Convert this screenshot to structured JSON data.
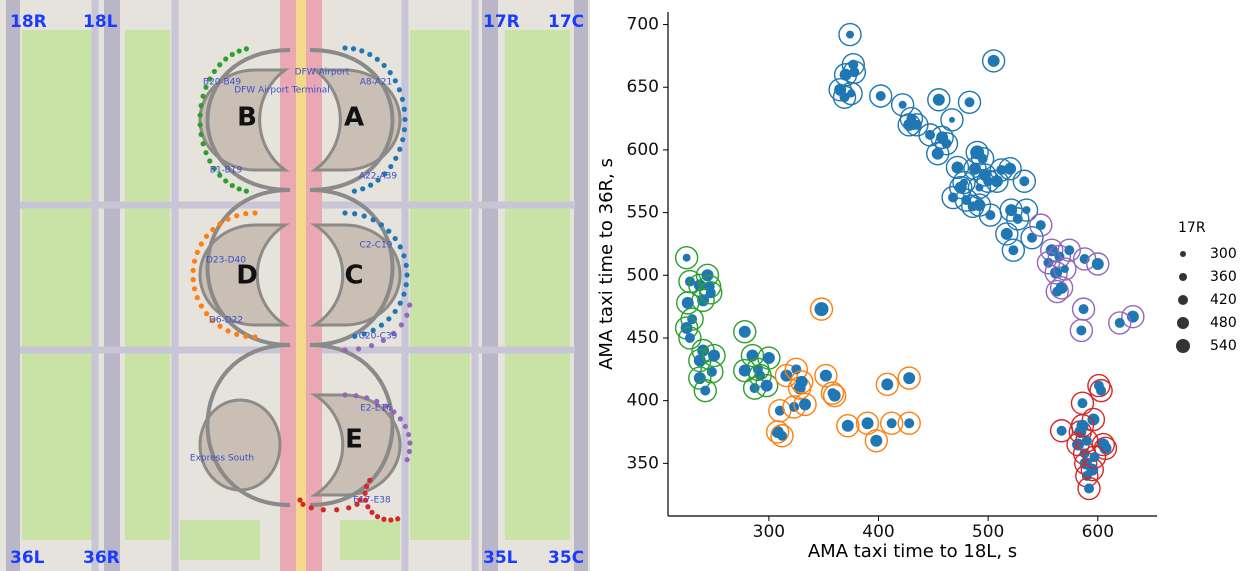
{
  "map": {
    "runway_labels": [
      "18R",
      "18L",
      "17R",
      "17C",
      "36L",
      "36R",
      "35L",
      "35C"
    ],
    "terminals": [
      "B",
      "A",
      "D",
      "C",
      "E"
    ],
    "gate_labels": [
      "B20-B49",
      "A8-A21",
      "B1-B19",
      "A22-A39",
      "C2-C19",
      "D23-D40",
      "D6-D22",
      "C20-C39",
      "E2-E16",
      "E17-E38"
    ],
    "place_labels": [
      "DFW Airport",
      "DFW Airport Terminal",
      "Express South"
    ]
  },
  "chart_data": {
    "type": "scatter",
    "x_label": "AMA taxi time to 18L, s",
    "y_label": "AMA taxi time to 36R, s",
    "xlim": [
      208,
      654
    ],
    "ylim": [
      308,
      710
    ],
    "xticks": [
      300,
      400,
      500,
      600
    ],
    "yticks": [
      350,
      400,
      450,
      500,
      550,
      600,
      650,
      700
    ],
    "grid": false,
    "point_color": "#1f77b4",
    "size_legend": {
      "title": "17R",
      "values": [
        300,
        360,
        420,
        480,
        540
      ],
      "color": "#333333"
    },
    "series": [
      {
        "color": "#1f77b4",
        "x": [
          374,
          377,
          370,
          378,
          365,
          369,
          375,
          402,
          422,
          430,
          428,
          435,
          455,
          447,
          458,
          462,
          454,
          467,
          483,
          505,
          472,
          490,
          495,
          488,
          497,
          500,
          492,
          512,
          520,
          533,
          475,
          468,
          480,
          492,
          502,
          521,
          527,
          535,
          517,
          523,
          540,
          508,
          486,
          478
        ],
        "values": [
          692,
          668,
          660,
          662,
          648,
          642,
          645,
          643,
          636,
          625,
          620,
          620,
          640,
          612,
          610,
          605,
          597,
          624,
          638,
          671,
          586,
          598,
          593,
          585,
          580,
          575,
          570,
          584,
          585,
          575,
          570,
          562,
          560,
          556,
          548,
          552,
          545,
          552,
          533,
          520,
          530,
          575,
          555,
          574
        ],
        "sizes": [
          360,
          420,
          480,
          420,
          480,
          420,
          360,
          420,
          360,
          420,
          480,
          420,
          480,
          420,
          480,
          420,
          480,
          300,
          420,
          480,
          480,
          540,
          420,
          480,
          480,
          420,
          360,
          420,
          480,
          420,
          480,
          420,
          420,
          480,
          420,
          480,
          420,
          360,
          480,
          420,
          420,
          480,
          420,
          360
        ]
      },
      {
        "color": "#9467bd",
        "x": [
          548,
          558,
          555,
          562,
          565,
          570,
          574,
          567,
          563,
          588,
          600,
          587,
          585,
          632,
          620
        ],
        "values": [
          540,
          520,
          510,
          502,
          515,
          505,
          520,
          490,
          487,
          513,
          509,
          473,
          456,
          467,
          462
        ],
        "sizes": [
          420,
          480,
          420,
          480,
          420,
          360,
          420,
          480,
          420,
          420,
          480,
          420,
          420,
          480,
          420
        ]
      },
      {
        "color": "#2ca02c",
        "x": [
          225,
          228,
          237,
          244,
          246,
          240,
          247,
          226,
          230,
          225,
          228,
          240,
          248,
          237,
          237,
          242,
          250,
          278,
          285,
          290,
          300,
          292,
          278,
          287,
          298
        ],
        "values": [
          514,
          495,
          492,
          500,
          491,
          480,
          486,
          478,
          465,
          458,
          450,
          440,
          423,
          432,
          418,
          408,
          436,
          455,
          436,
          425,
          434,
          420,
          424,
          410,
          412
        ],
        "sizes": [
          360,
          420,
          480,
          480,
          420,
          480,
          420,
          480,
          420,
          480,
          420,
          480,
          420,
          480,
          480,
          420,
          480,
          480,
          480,
          420,
          480,
          420,
          480,
          420,
          480
        ]
      },
      {
        "color": "#ff7f0e",
        "x": [
          310,
          308,
          312,
          316,
          323,
          328,
          325,
          333,
          330,
          348,
          352,
          358,
          360,
          372,
          390,
          398,
          412,
          408,
          428,
          428
        ],
        "values": [
          392,
          375,
          372,
          420,
          395,
          410,
          425,
          397,
          415,
          473,
          420,
          406,
          404,
          380,
          382,
          368,
          382,
          413,
          418,
          382
        ],
        "sizes": [
          420,
          480,
          420,
          480,
          420,
          480,
          420,
          480,
          480,
          540,
          480,
          420,
          480,
          480,
          480,
          480,
          420,
          480,
          480,
          420
        ]
      },
      {
        "color": "#d62728",
        "x": [
          567,
          584,
          586,
          582,
          588,
          589,
          590,
          595,
          592,
          596,
          601,
          603,
          605,
          607,
          590,
          586,
          597
        ],
        "values": [
          376,
          375,
          398,
          365,
          358,
          350,
          340,
          345,
          330,
          385,
          412,
          408,
          365,
          362,
          368,
          380,
          355
        ],
        "sizes": [
          420,
          480,
          420,
          480,
          420,
          480,
          420,
          480,
          420,
          480,
          420,
          420,
          480,
          480,
          420,
          480,
          420
        ]
      }
    ]
  }
}
